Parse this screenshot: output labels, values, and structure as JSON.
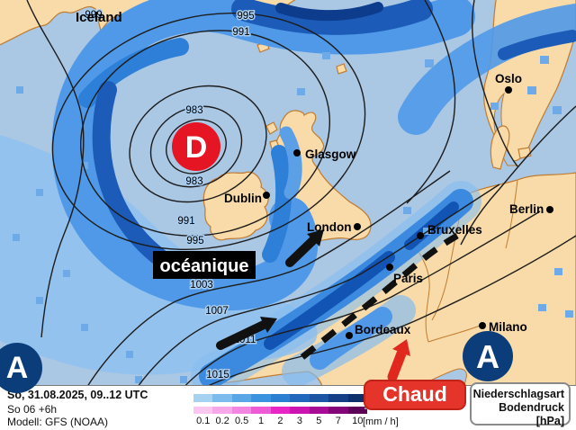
{
  "colors": {
    "sea": "#aac7e4",
    "land": "#f8dba8",
    "land_border": "#c07c30",
    "precip_light": "#8ec1f0",
    "precip_medium": "#4f99e8",
    "precip_strong": "#2e7fd8",
    "precip_heavy": "#1c5cb8",
    "precip_extreme": "#0e3c8c",
    "low_red": "#e51523",
    "high_navy": "#0a3d7a",
    "warm_red": "#e5352b",
    "warm_red_border": "#c22319",
    "front_black": "#111111"
  },
  "map": {
    "cities": [
      {
        "name": "Iceland"
      },
      {
        "name": "Oslo"
      },
      {
        "name": "Glasgow"
      },
      {
        "name": "Dublin"
      },
      {
        "name": "London"
      },
      {
        "name": "Bruxelles"
      },
      {
        "name": "Berlin"
      },
      {
        "name": "Paris"
      },
      {
        "name": "Bordeaux"
      },
      {
        "name": "Milano"
      }
    ],
    "pressure_labels": [
      "999",
      "995",
      "991",
      "983",
      "983",
      "991",
      "995",
      "1003",
      "1007",
      "1011",
      "1015"
    ],
    "pressure_symbols": {
      "low": "D",
      "high": "A"
    },
    "annotations": {
      "air_mass": "océanique",
      "front": "Chaud"
    }
  },
  "footer": {
    "valid_time": "So, 31.08.2025, 09..12 UTC",
    "run_info": "So 06 +6h",
    "model": "Modell: GFS (NOAA)",
    "legend": {
      "ticks": [
        "0.1",
        "0.2",
        "0.5",
        "1",
        "2",
        "3",
        "5",
        "7",
        "10"
      ],
      "unit": "[mm / h]",
      "rain_colors": [
        "#a6d2f2",
        "#7cbcec",
        "#58a6e6",
        "#3b92de",
        "#2b7fd2",
        "#2168bc",
        "#1b55a4",
        "#143f87",
        "#0d2f6b"
      ],
      "type_colors": [
        "#f9c7ef",
        "#f7a8e8",
        "#f386e0",
        "#ef5ad6",
        "#ea25c8",
        "#cc14b2",
        "#a80c96",
        "#820678",
        "#5c0358"
      ]
    },
    "right_panel": {
      "line1": "Niederschlagsart",
      "line2": "Bodendruck [hPa]"
    }
  }
}
